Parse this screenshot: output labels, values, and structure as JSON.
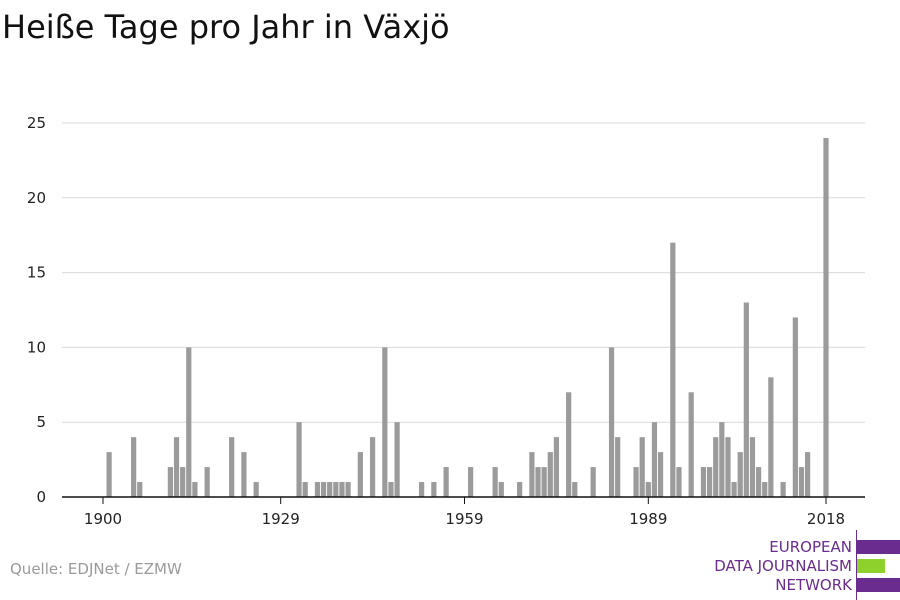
{
  "chart_data": {
    "type": "bar",
    "title": "Heiße Tage pro Jahr in Växjö",
    "xlabel": "",
    "ylabel": "",
    "x_ticks": [
      1900,
      1929,
      1959,
      1989,
      2018
    ],
    "y_ticks": [
      0,
      5,
      10,
      15,
      20,
      25
    ],
    "ylim": [
      0,
      25
    ],
    "xlim": [
      1900,
      2018
    ],
    "grid": true,
    "bar_color": "#9b9b9b",
    "series": [
      {
        "x": [
          1901,
          1905,
          1906,
          1911,
          1912,
          1913,
          1914,
          1915,
          1917,
          1921,
          1923,
          1925,
          1932,
          1933,
          1935,
          1936,
          1937,
          1938,
          1939,
          1940,
          1942,
          1944,
          1946,
          1947,
          1948,
          1952,
          1954,
          1956,
          1960,
          1964,
          1965,
          1968,
          1970,
          1971,
          1972,
          1973,
          1974,
          1976,
          1977,
          1980,
          1983,
          1984,
          1987,
          1988,
          1989,
          1990,
          1991,
          1993,
          1994,
          1996,
          1998,
          1999,
          2000,
          2001,
          2002,
          2003,
          2004,
          2005,
          2006,
          2007,
          2008,
          2009,
          2011,
          2013,
          2014,
          2015,
          2018
        ],
        "values": [
          3,
          4,
          1,
          2,
          4,
          2,
          10,
          1,
          2,
          4,
          3,
          1,
          5,
          1,
          1,
          1,
          1,
          1,
          1,
          1,
          3,
          4,
          10,
          1,
          5,
          1,
          1,
          2,
          2,
          2,
          1,
          1,
          3,
          2,
          2,
          3,
          4,
          7,
          1,
          2,
          10,
          4,
          2,
          4,
          1,
          5,
          3,
          17,
          2,
          7,
          2,
          2,
          4,
          5,
          4,
          1,
          3,
          13,
          4,
          2,
          1,
          8,
          1,
          12,
          2,
          3,
          24
        ]
      }
    ]
  },
  "source": "Quelle: EDJNet / EZMW",
  "logo": {
    "line1": "EUROPEAN",
    "line2": "DATA JOURNALISM",
    "line3": "NETWORK",
    "colors": {
      "purple": "#6a2c8e",
      "green": "#8fd12c"
    }
  }
}
